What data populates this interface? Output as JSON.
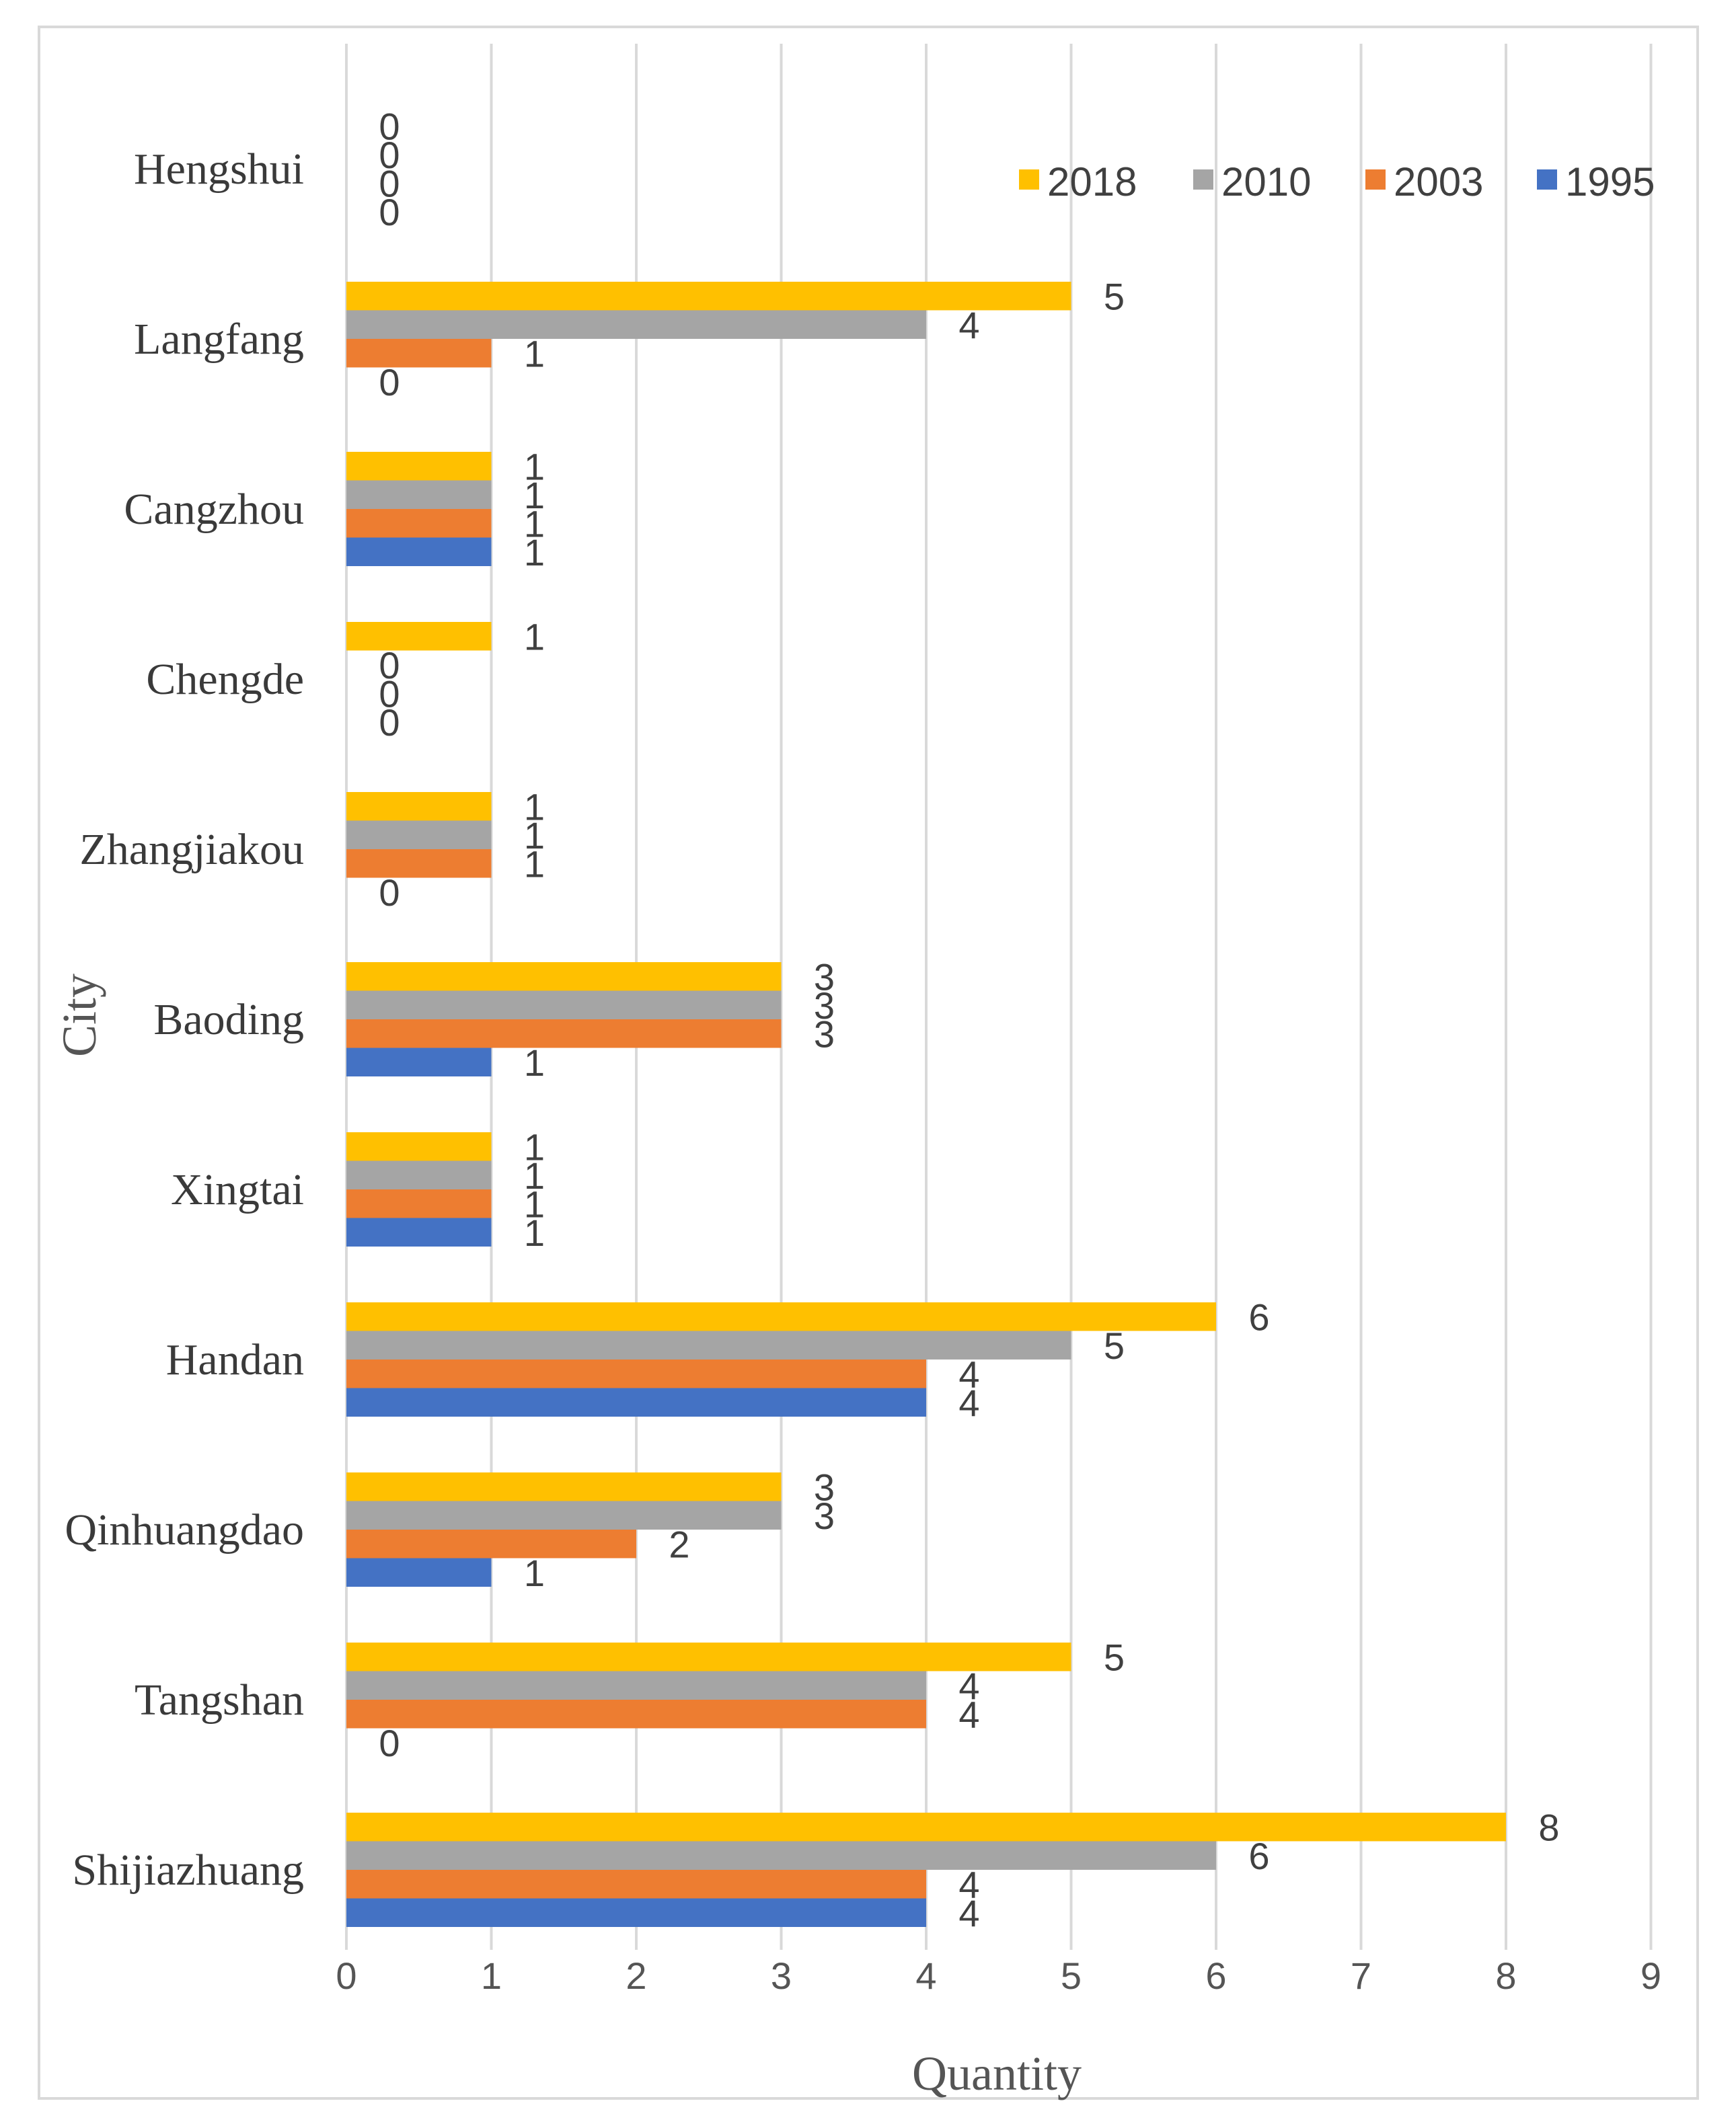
{
  "chart_data": {
    "type": "bar",
    "orientation": "horizontal",
    "title": "",
    "xlabel": "Quantity",
    "ylabel": "City",
    "xlim": [
      0,
      9
    ],
    "xticks": [
      "0",
      "1",
      "2",
      "3",
      "4",
      "5",
      "6",
      "7",
      "8",
      "9"
    ],
    "grid": true,
    "legend_position": "top-right",
    "categories": [
      "Shijiazhuang",
      "Tangshan",
      "Qinhuangdao",
      "Handan",
      "Xingtai",
      "Baoding",
      "Zhangjiakou",
      "Chengde",
      "Cangzhou",
      "Langfang",
      "Hengshui"
    ],
    "series": [
      {
        "name": "1995",
        "color": "#4472C4",
        "values": [
          4,
          0,
          1,
          4,
          1,
          1,
          0,
          0,
          1,
          0,
          0
        ]
      },
      {
        "name": "2003",
        "color": "#ED7D31",
        "values": [
          4,
          4,
          2,
          4,
          1,
          3,
          1,
          0,
          1,
          1,
          0
        ]
      },
      {
        "name": "2010",
        "color": "#A5A5A5",
        "values": [
          6,
          4,
          3,
          5,
          1,
          3,
          1,
          0,
          1,
          4,
          0
        ]
      },
      {
        "name": "2018",
        "color": "#FFC000",
        "values": [
          8,
          5,
          3,
          6,
          1,
          3,
          1,
          1,
          1,
          5,
          0
        ]
      }
    ],
    "legend_order": [
      "2018",
      "2010",
      "2003",
      "1995"
    ]
  }
}
